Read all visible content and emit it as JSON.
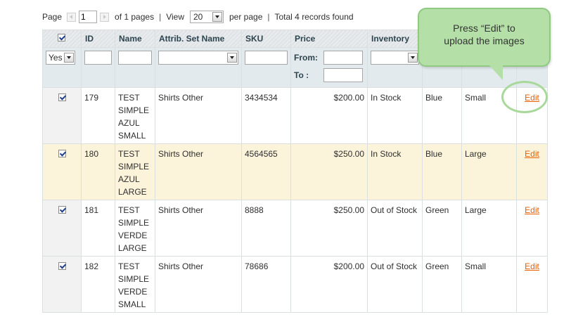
{
  "pager": {
    "page_label": "Page",
    "page_value": "1",
    "of_pages": "of 1 pages",
    "sep": "|",
    "view_label": "View",
    "view_value": "20",
    "per_page": "per page",
    "total": "Total 4 records found"
  },
  "columns": {
    "id": "ID",
    "name": "Name",
    "attrib": "Attrib. Set Name",
    "sku": "SKU",
    "price": "Price",
    "inventory": "Inventory"
  },
  "filters": {
    "massaction_value": "Yes",
    "price_from": "From:",
    "price_to": "To :"
  },
  "rows": [
    {
      "id": "179",
      "name": [
        "TEST",
        "SIMPLE",
        "AZUL",
        "SMALL"
      ],
      "attrib": "Shirts Other",
      "sku": "3434534",
      "price": "$200.00",
      "inventory": "In Stock",
      "color": "Blue",
      "size": "Small",
      "action": "Edit"
    },
    {
      "id": "180",
      "name": [
        "TEST",
        "SIMPLE",
        "AZUL",
        "LARGE"
      ],
      "attrib": "Shirts Other",
      "sku": "4564565",
      "price": "$250.00",
      "inventory": "In Stock",
      "color": "Blue",
      "size": "Large",
      "action": "Edit"
    },
    {
      "id": "181",
      "name": [
        "TEST",
        "SIMPLE",
        "VERDE",
        "LARGE"
      ],
      "attrib": "Shirts Other",
      "sku": "8888",
      "price": "$250.00",
      "inventory": "Out of Stock",
      "color": "Green",
      "size": "Large",
      "action": "Edit"
    },
    {
      "id": "182",
      "name": [
        "TEST",
        "SIMPLE",
        "VERDE",
        "SMALL"
      ],
      "attrib": "Shirts Other",
      "sku": "78686",
      "price": "$200.00",
      "inventory": "Out of Stock",
      "color": "Green",
      "size": "Small",
      "action": "Edit"
    }
  ],
  "callout": {
    "line1": "Press “Edit” to",
    "line2": "upload the images"
  }
}
